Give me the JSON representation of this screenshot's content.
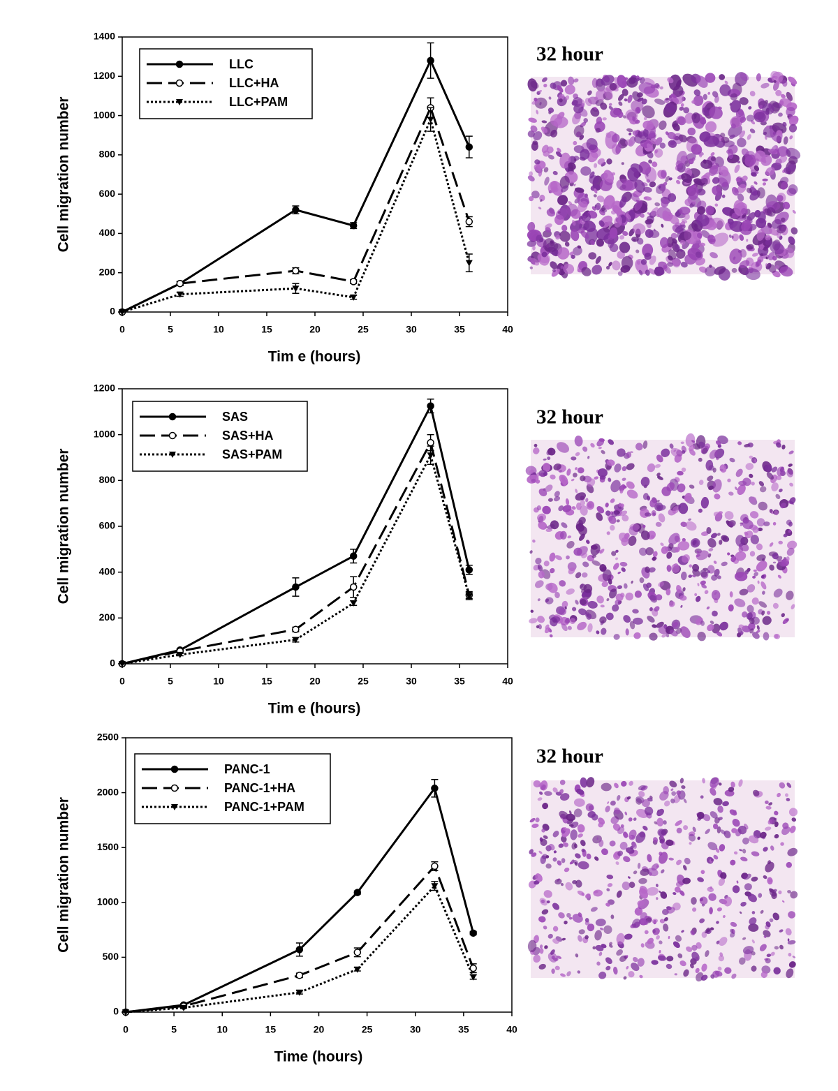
{
  "chart_data": [
    {
      "type": "line",
      "xlabel": "Tim e (hours)",
      "ylabel": "Cell migration number",
      "x": [
        0,
        6,
        18,
        24,
        32,
        36
      ],
      "xlim": [
        0,
        40
      ],
      "xticks": [
        0,
        5,
        10,
        15,
        20,
        25,
        30,
        35,
        40
      ],
      "ylim": [
        0,
        1400
      ],
      "yticks": [
        0,
        200,
        400,
        600,
        800,
        1000,
        1200,
        1400
      ],
      "legend": "upper left",
      "series": [
        {
          "name": "LLC",
          "color": "#000000",
          "linestyle": "solid",
          "marker": "circle",
          "values": [
            0,
            145,
            520,
            440,
            1280,
            840
          ],
          "errors": [
            0,
            10,
            20,
            15,
            90,
            55
          ]
        },
        {
          "name": "LLC+HA",
          "color": "#000000",
          "linestyle": "dashed",
          "marker": "open-circle",
          "values": [
            0,
            145,
            210,
            155,
            1040,
            460
          ],
          "errors": [
            0,
            10,
            15,
            10,
            50,
            25
          ]
        },
        {
          "name": "LLC+PAM",
          "color": "#000000",
          "linestyle": "dotted",
          "marker": "triangle-down",
          "values": [
            0,
            90,
            120,
            75,
            980,
            250
          ],
          "errors": [
            0,
            10,
            25,
            10,
            60,
            45
          ]
        }
      ]
    },
    {
      "type": "line",
      "xlabel": "Tim e (hours)",
      "ylabel": "Cell migration number",
      "x": [
        0,
        6,
        18,
        24,
        32,
        36
      ],
      "xlim": [
        0,
        40
      ],
      "xticks": [
        0,
        5,
        10,
        15,
        20,
        25,
        30,
        35,
        40
      ],
      "ylim": [
        0,
        1200
      ],
      "yticks": [
        0,
        200,
        400,
        600,
        800,
        1000,
        1200
      ],
      "legend": "upper left",
      "series": [
        {
          "name": "SAS",
          "color": "#000000",
          "linestyle": "solid",
          "marker": "circle",
          "values": [
            0,
            60,
            335,
            470,
            1125,
            410
          ],
          "errors": [
            0,
            5,
            40,
            30,
            30,
            20
          ]
        },
        {
          "name": "SAS+HA",
          "color": "#000000",
          "linestyle": "dashed",
          "marker": "open-circle",
          "values": [
            0,
            55,
            150,
            335,
            965,
            300
          ],
          "errors": [
            0,
            5,
            10,
            45,
            35,
            15
          ]
        },
        {
          "name": "SAS+PAM",
          "color": "#000000",
          "linestyle": "dotted",
          "marker": "triangle-down",
          "values": [
            0,
            40,
            105,
            265,
            910,
            295
          ],
          "errors": [
            0,
            5,
            10,
            10,
            40,
            15
          ]
        }
      ]
    },
    {
      "type": "line",
      "xlabel": "Time (hours)",
      "ylabel": "Cell migration number",
      "x": [
        0,
        6,
        18,
        24,
        32,
        36
      ],
      "xlim": [
        0,
        40
      ],
      "xticks": [
        0,
        5,
        10,
        15,
        20,
        25,
        30,
        35,
        40
      ],
      "ylim": [
        0,
        2500
      ],
      "yticks": [
        0,
        500,
        1000,
        1500,
        2000,
        2500
      ],
      "legend": "upper left",
      "series": [
        {
          "name": "PANC-1",
          "color": "#000000",
          "linestyle": "solid",
          "marker": "circle",
          "values": [
            0,
            65,
            570,
            1090,
            2040,
            720
          ],
          "errors": [
            0,
            10,
            60,
            15,
            80,
            15
          ]
        },
        {
          "name": "PANC-1+HA",
          "color": "#000000",
          "linestyle": "dashed",
          "marker": "open-circle",
          "values": [
            0,
            55,
            335,
            545,
            1330,
            400
          ],
          "errors": [
            0,
            10,
            20,
            40,
            40,
            40
          ]
        },
        {
          "name": "PANC-1+PAM",
          "color": "#000000",
          "linestyle": "dotted",
          "marker": "triangle-down",
          "values": [
            0,
            40,
            180,
            390,
            1150,
            320
          ],
          "errors": [
            0,
            5,
            15,
            15,
            40,
            20
          ]
        }
      ]
    }
  ],
  "images": [
    {
      "caption": "32 hour"
    },
    {
      "caption": "32 hour"
    },
    {
      "caption": "32 hour"
    }
  ]
}
